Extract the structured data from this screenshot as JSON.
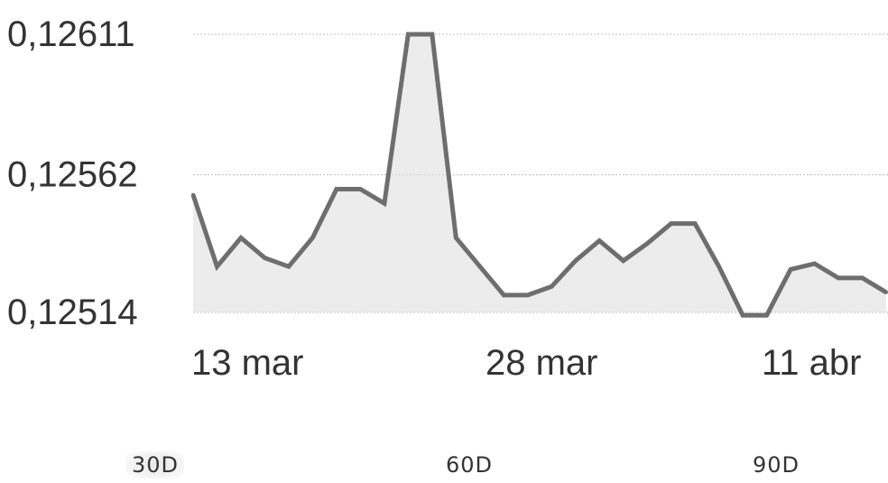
{
  "chart_data": {
    "type": "area",
    "title": "",
    "xlabel": "",
    "ylabel": "",
    "y_ticks": [
      "0,12611",
      "0,12562",
      "0,12514"
    ],
    "y_tick_values": [
      0.12611,
      0.12562,
      0.12514
    ],
    "x_ticks": [
      "13 mar",
      "28 mar",
      "11 abr"
    ],
    "ylim": [
      0.12514,
      0.12611
    ],
    "grid": true,
    "colors": {
      "line": "#6e6e6e",
      "fill": "#dcdcdc",
      "grid": "#bdbdbd"
    },
    "series": [
      {
        "values": [
          0.12555,
          0.1253,
          0.1254,
          0.12533,
          0.1253,
          0.1254,
          0.12557,
          0.12557,
          0.12552,
          0.12611,
          0.12611,
          0.1254,
          0.1253,
          0.1252,
          0.1252,
          0.12523,
          0.12532,
          0.12539,
          0.12532,
          0.12538,
          0.12545,
          0.12545,
          0.1253,
          0.12513,
          0.12513,
          0.12529,
          0.12531,
          0.12526,
          0.12526,
          0.12521
        ]
      }
    ]
  },
  "range_selector": {
    "options": [
      "30D",
      "60D",
      "90D"
    ],
    "selected": "30D"
  }
}
